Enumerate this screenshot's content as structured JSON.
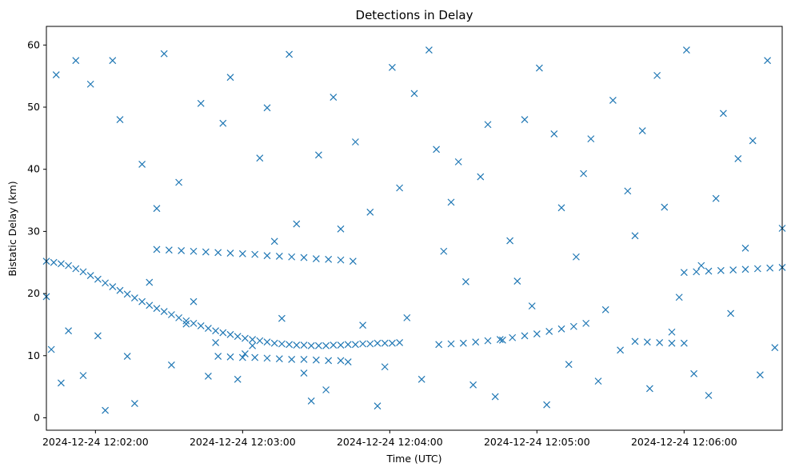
{
  "chart_data": {
    "type": "scatter",
    "title": "Detections in Delay",
    "xlabel": "Time (UTC)",
    "ylabel": "Bistatic Delay (km)",
    "x_ticks": [
      "2024-12-24 12:02:00",
      "2024-12-24 12:03:00",
      "2024-12-24 12:04:00",
      "2024-12-24 12:05:00",
      "2024-12-24 12:06:00"
    ],
    "y_ticks": [
      "0",
      "10",
      "20",
      "30",
      "40",
      "50",
      "60"
    ],
    "x_range": [
      "2024-12-24 12:01:40",
      "2024-12-24 12:06:40"
    ],
    "ylim": [
      -2,
      63
    ],
    "marker": "x",
    "color": "#1f77b4",
    "grid": false,
    "legend": "none",
    "series": [
      {
        "x": [
          "12:01:40",
          "12:01:43",
          "12:01:46",
          "12:01:49",
          "12:01:52",
          "12:01:55",
          "12:01:58",
          "12:02:01",
          "12:02:04",
          "12:02:07",
          "12:02:10",
          "12:02:13",
          "12:02:16",
          "12:02:19",
          "12:02:22",
          "12:02:25",
          "12:02:28",
          "12:02:31",
          "12:02:34",
          "12:02:37",
          "12:02:40",
          "12:02:43",
          "12:02:46",
          "12:02:49",
          "12:02:52",
          "12:02:55",
          "12:02:58",
          "12:03:01",
          "12:03:04",
          "12:03:07",
          "12:03:10",
          "12:03:13",
          "12:03:16",
          "12:03:19",
          "12:03:22",
          "12:03:25",
          "12:03:28",
          "12:03:31",
          "12:03:34",
          "12:03:37",
          "12:03:40",
          "12:03:43",
          "12:03:46",
          "12:03:49",
          "12:03:52",
          "12:03:55",
          "12:03:58",
          "12:04:01",
          "12:04:04"
        ],
        "y": [
          25.2,
          25.0,
          24.8,
          24.5,
          24.0,
          23.5,
          22.9,
          22.3,
          21.7,
          21.1,
          20.5,
          19.9,
          19.3,
          18.7,
          18.1,
          17.6,
          17.1,
          16.6,
          16.1,
          15.6,
          15.2,
          14.8,
          14.4,
          14.0,
          13.7,
          13.4,
          13.1,
          12.8,
          12.6,
          12.4,
          12.2,
          12.0,
          11.9,
          11.8,
          11.7,
          11.7,
          11.6,
          11.6,
          11.6,
          11.7,
          11.7,
          11.8,
          11.8,
          11.9,
          11.9,
          12.0,
          12.0,
          12.0,
          12.1
        ]
      },
      {
        "x": [
          "12:04:20",
          "12:04:25",
          "12:04:30",
          "12:04:35",
          "12:04:40",
          "12:04:45",
          "12:04:50",
          "12:04:55",
          "12:05:00",
          "12:05:05",
          "12:05:10",
          "12:05:15",
          "12:05:20"
        ],
        "y": [
          11.8,
          11.9,
          12.0,
          12.2,
          12.4,
          12.6,
          12.9,
          13.2,
          13.5,
          13.9,
          14.3,
          14.7,
          15.2
        ]
      },
      {
        "x": [
          "12:02:25",
          "12:02:30",
          "12:02:35",
          "12:02:40",
          "12:02:45",
          "12:02:50",
          "12:02:55",
          "12:03:00",
          "12:03:05",
          "12:03:10",
          "12:03:15",
          "12:03:20",
          "12:03:25",
          "12:03:30",
          "12:03:35",
          "12:03:40",
          "12:03:45"
        ],
        "y": [
          27.1,
          27.0,
          26.9,
          26.8,
          26.7,
          26.6,
          26.5,
          26.4,
          26.3,
          26.1,
          26.0,
          25.9,
          25.8,
          25.6,
          25.5,
          25.4,
          25.2
        ]
      },
      {
        "x": [
          "12:02:50",
          "12:02:55",
          "12:03:00",
          "12:03:05",
          "12:03:10",
          "12:03:15",
          "12:03:20",
          "12:03:25",
          "12:03:30",
          "12:03:35",
          "12:03:40"
        ],
        "y": [
          9.9,
          9.8,
          9.7,
          9.7,
          9.6,
          9.5,
          9.4,
          9.4,
          9.3,
          9.2,
          9.2
        ]
      },
      {
        "x": [
          "12:06:00",
          "12:06:05",
          "12:06:10",
          "12:06:15",
          "12:06:20",
          "12:06:25",
          "12:06:30",
          "12:06:35",
          "12:06:40"
        ],
        "y": [
          23.4,
          23.5,
          23.6,
          23.7,
          23.8,
          23.9,
          24.0,
          24.1,
          24.2
        ]
      },
      {
        "x": [
          "12:05:40",
          "12:05:45",
          "12:05:50",
          "12:05:55",
          "12:06:00"
        ],
        "y": [
          12.3,
          12.2,
          12.1,
          12.0,
          12.0
        ]
      },
      {
        "x": [
          "12:01:40",
          "12:01:42",
          "12:01:44",
          "12:01:46",
          "12:01:49",
          "12:01:52",
          "12:01:55",
          "12:01:58",
          "12:02:01",
          "12:02:04",
          "12:02:07",
          "12:02:10",
          "12:02:13",
          "12:02:16",
          "12:02:19",
          "12:02:22",
          "12:02:25",
          "12:02:28",
          "12:02:31",
          "12:02:34",
          "12:02:37",
          "12:02:40",
          "12:02:43",
          "12:02:46",
          "12:02:49",
          "12:02:52",
          "12:02:55",
          "12:02:58",
          "12:03:01",
          "12:03:04",
          "12:03:07",
          "12:03:10",
          "12:03:13",
          "12:03:16",
          "12:03:19",
          "12:03:22",
          "12:03:25",
          "12:03:28",
          "12:03:31",
          "12:03:34",
          "12:03:37",
          "12:03:40",
          "12:03:43",
          "12:03:46",
          "12:03:49",
          "12:03:52",
          "12:03:55",
          "12:03:58",
          "12:04:01",
          "12:04:04",
          "12:04:07",
          "12:04:10",
          "12:04:13",
          "12:04:16",
          "12:04:19",
          "12:04:22",
          "12:04:25",
          "12:04:28",
          "12:04:31",
          "12:04:34",
          "12:04:37",
          "12:04:40",
          "12:04:43",
          "12:04:46",
          "12:04:49",
          "12:04:52",
          "12:04:55",
          "12:04:58",
          "12:05:01",
          "12:05:04",
          "12:05:07",
          "12:05:10",
          "12:05:13",
          "12:05:16",
          "12:05:19",
          "12:05:22",
          "12:05:25",
          "12:05:28",
          "12:05:31",
          "12:05:34",
          "12:05:37",
          "12:05:40",
          "12:05:43",
          "12:05:46",
          "12:05:49",
          "12:05:52",
          "12:05:55",
          "12:05:58",
          "12:06:01",
          "12:06:04",
          "12:06:07",
          "12:06:10",
          "12:06:13",
          "12:06:16",
          "12:06:19",
          "12:06:22",
          "12:06:25",
          "12:06:28",
          "12:06:31",
          "12:06:34",
          "12:06:37",
          "12:06:40"
        ],
        "y": [
          19.5,
          11.0,
          55.2,
          5.6,
          14.0,
          57.5,
          6.8,
          53.7,
          13.2,
          1.2,
          57.5,
          48.0,
          9.9,
          2.3,
          40.8,
          21.8,
          33.7,
          58.6,
          8.5,
          37.9,
          15.1,
          18.7,
          50.6,
          6.7,
          12.1,
          47.4,
          54.8,
          6.2,
          10.3,
          11.6,
          41.8,
          49.9,
          28.4,
          16.0,
          58.5,
          31.2,
          7.2,
          2.7,
          42.3,
          4.5,
          51.6,
          30.4,
          9.0,
          44.4,
          14.9,
          33.1,
          1.9,
          8.2,
          56.4,
          37.0,
          16.1,
          52.2,
          6.2,
          59.2,
          43.2,
          26.8,
          34.7,
          41.2,
          21.9,
          5.3,
          38.8,
          47.2,
          3.4,
          12.5,
          28.5,
          22.0,
          48.0,
          18.0,
          56.3,
          2.1,
          45.7,
          33.8,
          8.6,
          25.9,
          39.3,
          44.9,
          5.9,
          17.4,
          51.1,
          10.9,
          36.5,
          29.3,
          46.2,
          4.7,
          55.1,
          33.9,
          13.8,
          19.4,
          59.2,
          7.1,
          24.5,
          3.6,
          35.3,
          49.0,
          16.8,
          41.7,
          27.3,
          44.6,
          6.9,
          57.5,
          11.3,
          30.5
        ]
      }
    ]
  }
}
